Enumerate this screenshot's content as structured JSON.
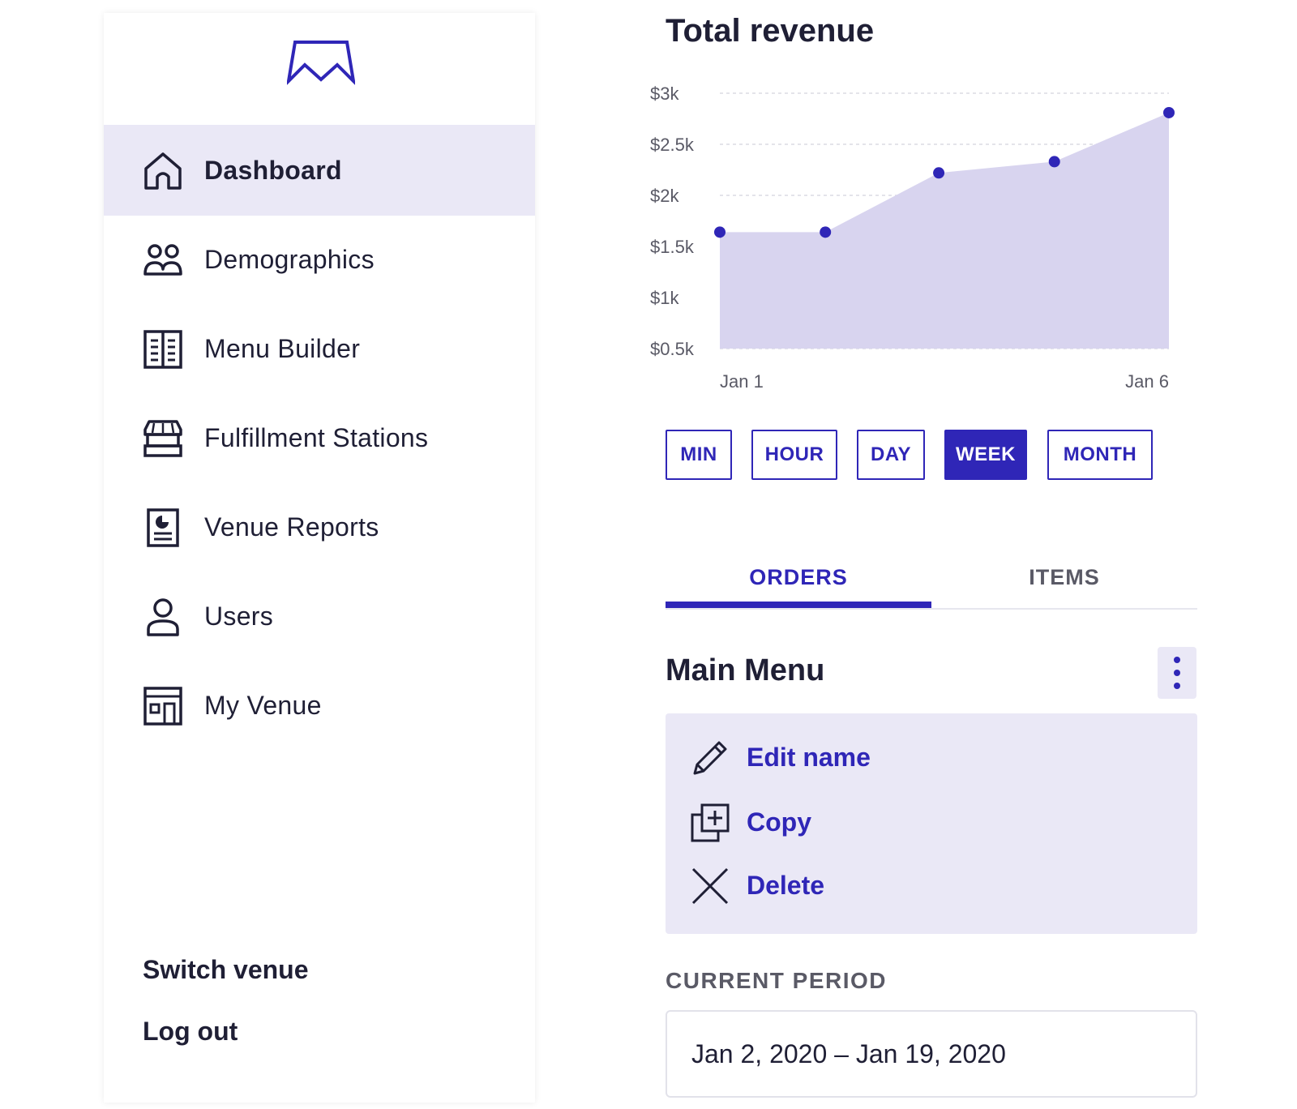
{
  "colors": {
    "accent": "#2f26b7",
    "accent_light": "#eae8f6",
    "chart_fill": "#d8d4ef",
    "text_dark": "#1f1f35",
    "text_muted": "#5a5a66"
  },
  "sidebar": {
    "logo_icon": "crown-logo-icon",
    "items": [
      {
        "label": "Dashboard",
        "icon": "home-icon",
        "active": true
      },
      {
        "label": "Demographics",
        "icon": "users-group-icon",
        "active": false
      },
      {
        "label": "Menu Builder",
        "icon": "menu-book-icon",
        "active": false
      },
      {
        "label": "Fulfillment Stations",
        "icon": "storefront-icon",
        "active": false
      },
      {
        "label": "Venue Reports",
        "icon": "report-icon",
        "active": false
      },
      {
        "label": "Users",
        "icon": "user-icon",
        "active": false
      },
      {
        "label": "My Venue",
        "icon": "building-icon",
        "active": false
      }
    ],
    "switch_venue": "Switch venue",
    "logout": "Log out"
  },
  "main": {
    "title": "Total revenue",
    "ranges": [
      {
        "label": "MIN",
        "selected": false
      },
      {
        "label": "HOUR",
        "selected": false
      },
      {
        "label": "DAY",
        "selected": false
      },
      {
        "label": "WEEK",
        "selected": true
      },
      {
        "label": "MONTH",
        "selected": false
      }
    ],
    "tabs": [
      {
        "label": "ORDERS",
        "active": true
      },
      {
        "label": "ITEMS",
        "active": false
      }
    ],
    "section_title": "Main Menu",
    "actions": [
      {
        "label": "Edit name",
        "icon": "pencil-icon"
      },
      {
        "label": "Copy",
        "icon": "copy-plus-icon"
      },
      {
        "label": "Delete",
        "icon": "close-icon"
      }
    ],
    "period_label": "CURRENT PERIOD",
    "period_value": "Jan 2, 2020 – Jan 19, 2020"
  },
  "chart_data": {
    "type": "area",
    "title": "Total revenue",
    "xlabel": "",
    "ylabel": "",
    "x_tick_labels": [
      "Jan 1",
      "Jan 6"
    ],
    "y_tick_labels": [
      "$3k",
      "$2.5k",
      "$2k",
      "$1.5k",
      "$1k",
      "$0.5k"
    ],
    "y_ticks": [
      3000,
      2500,
      2000,
      1500,
      1000,
      500
    ],
    "ylim": [
      500,
      3000
    ],
    "points": [
      {
        "x": 0.0,
        "y": 1640
      },
      {
        "x": 0.94,
        "y": 1640
      },
      {
        "x": 1.95,
        "y": 2220
      },
      {
        "x": 2.98,
        "y": 2330
      },
      {
        "x": 4.0,
        "y": 2810
      }
    ],
    "grid": true
  }
}
